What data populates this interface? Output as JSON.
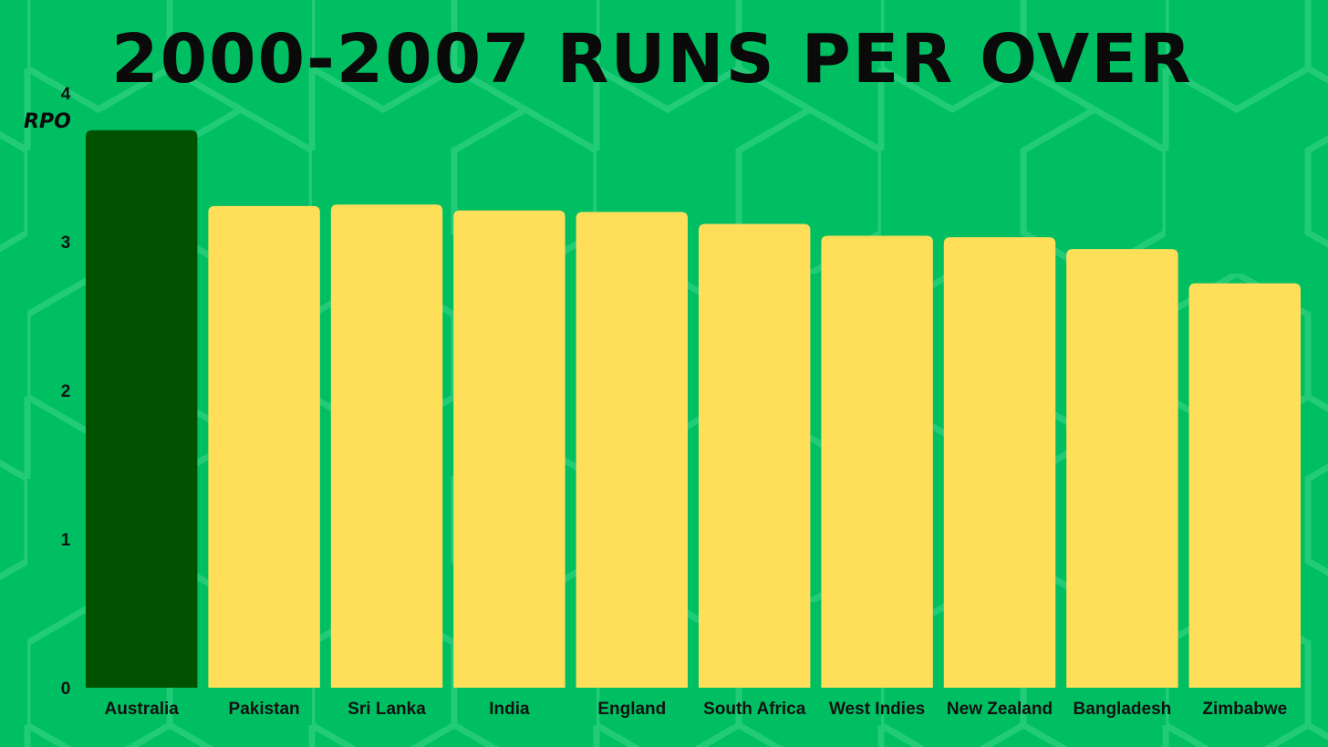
{
  "chart_data": {
    "type": "bar",
    "title": "2000-2007 RUNS PER OVER",
    "xlabel": "",
    "ylabel": "RPO",
    "ylim": [
      0,
      4
    ],
    "yticks": [
      "0",
      "1",
      "2",
      "3",
      "4"
    ],
    "grid": false,
    "categories": [
      "Australia",
      "Pakistan",
      "Sri Lanka",
      "India",
      "England",
      "South Africa",
      "West Indies",
      "New Zealand",
      "Bangladesh",
      "Zimbabwe"
    ],
    "values": [
      3.75,
      3.24,
      3.25,
      3.21,
      3.2,
      3.12,
      3.04,
      3.03,
      2.95,
      2.72
    ],
    "colors": {
      "highlight": "#005200",
      "default": "#ffde59",
      "background": "#00bf63",
      "text": "#0a0a0a"
    }
  }
}
